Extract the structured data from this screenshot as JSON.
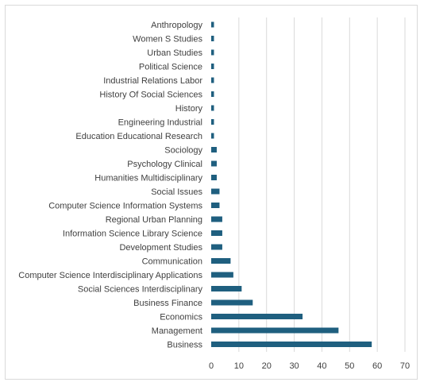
{
  "chart_data": {
    "type": "bar",
    "orientation": "horizontal",
    "title": "",
    "xlabel": "",
    "ylabel": "",
    "xlim": [
      0,
      70
    ],
    "xticks": [
      0,
      10,
      20,
      30,
      40,
      50,
      60,
      70
    ],
    "grid": "vertical",
    "legend": "none",
    "bar_color": "#1f5f7f",
    "categories": [
      "Anthropology",
      "Women S Studies",
      "Urban Studies",
      "Political Science",
      "Industrial Relations Labor",
      "History Of Social Sciences",
      "History",
      "Engineering Industrial",
      "Education Educational Research",
      "Sociology",
      "Psychology Clinical",
      "Humanities Multidisciplinary",
      "Social Issues",
      "Computer Science Information Systems",
      "Regional Urban Planning",
      "Information Science Library Science",
      "Development Studies",
      "Communication",
      "Computer Science Interdisciplinary Applications",
      "Social Sciences Interdisciplinary",
      "Business Finance",
      "Economics",
      "Management",
      "Business"
    ],
    "values": [
      1,
      1,
      1,
      1,
      1,
      1,
      1,
      1,
      1,
      2,
      2,
      2,
      3,
      3,
      4,
      4,
      4,
      7,
      8,
      11,
      15,
      33,
      46,
      58
    ]
  }
}
